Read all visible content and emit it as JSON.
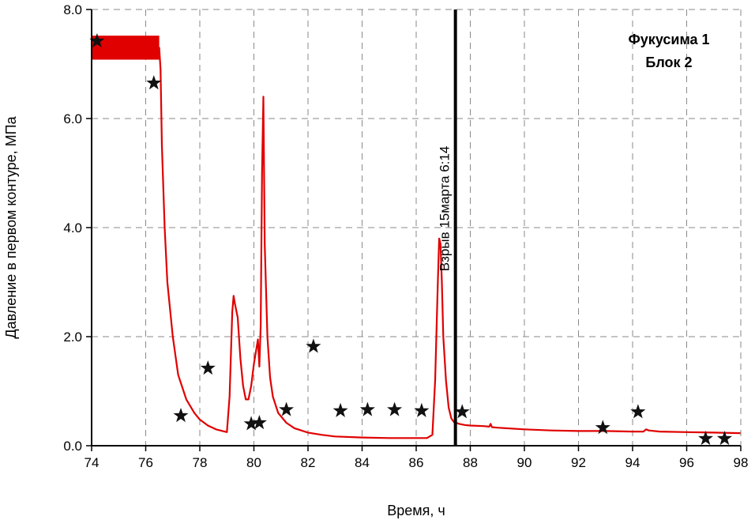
{
  "chart_data": {
    "type": "line",
    "xlabel": "Время, ч",
    "ylabel": "Давление в первом контуре, МПа",
    "xlim": [
      74,
      98
    ],
    "ylim": [
      0,
      8
    ],
    "x_ticks": [
      "74",
      "76",
      "78",
      "80",
      "82",
      "84",
      "86",
      "88",
      "90",
      "92",
      "94",
      "96",
      "98"
    ],
    "y_ticks": [
      "0.0",
      "2.0",
      "4.0",
      "6.0",
      "8.0"
    ],
    "grid": true,
    "colors": {
      "line": "#e00000",
      "star": "#111111",
      "event": "#000000"
    },
    "annotation": {
      "line1": "Фукусима 1",
      "line2": "Блок 2"
    },
    "event": {
      "x": 87.45,
      "label": "Взрыв 15марта 6:14"
    },
    "series": [
      {
        "type": "line",
        "x": [
          74.0,
          76.5,
          76.55,
          76.6,
          76.7,
          76.8,
          77.0,
          77.2,
          77.5,
          77.8,
          78.0,
          78.3,
          78.6,
          79.0,
          79.1,
          79.2,
          79.25,
          79.3,
          79.4,
          79.5,
          79.6,
          79.7,
          79.8,
          79.9,
          80.0,
          80.1,
          80.15,
          80.2,
          80.25,
          80.3,
          80.35,
          80.4,
          80.5,
          80.6,
          80.7,
          80.9,
          81.2,
          81.5,
          82.0,
          82.5,
          83.0,
          84.0,
          85.0,
          86.0,
          86.4,
          86.6,
          86.7,
          86.8,
          86.85,
          86.9,
          86.95,
          87.0,
          87.1,
          87.2,
          87.3,
          87.4,
          87.6,
          87.8,
          88.0,
          88.5,
          88.7,
          88.75,
          88.8,
          89.0,
          90.0,
          91.0,
          92.0,
          93.0,
          94.0,
          94.4,
          94.5,
          94.6,
          95.0,
          96.0,
          97.0,
          98.0
        ],
        "y": [
          7.3,
          7.3,
          6.9,
          5.5,
          4.0,
          3.0,
          2.0,
          1.3,
          0.85,
          0.6,
          0.48,
          0.37,
          0.3,
          0.25,
          0.9,
          2.45,
          2.75,
          2.6,
          2.35,
          1.6,
          1.1,
          0.85,
          0.85,
          1.1,
          1.5,
          1.8,
          1.95,
          1.45,
          2.2,
          5.0,
          6.4,
          3.7,
          2.0,
          1.25,
          0.9,
          0.6,
          0.42,
          0.32,
          0.24,
          0.2,
          0.17,
          0.15,
          0.14,
          0.14,
          0.14,
          0.2,
          1.2,
          3.0,
          3.8,
          3.7,
          3.0,
          2.0,
          1.2,
          0.7,
          0.5,
          0.43,
          0.4,
          0.38,
          0.37,
          0.36,
          0.35,
          0.4,
          0.34,
          0.33,
          0.3,
          0.28,
          0.27,
          0.27,
          0.26,
          0.26,
          0.3,
          0.28,
          0.26,
          0.25,
          0.24,
          0.23
        ]
      },
      {
        "type": "scatter",
        "marker": "star",
        "x": [
          74.2,
          76.3,
          77.3,
          78.3,
          79.9,
          80.2,
          81.2,
          82.2,
          83.2,
          84.2,
          85.2,
          86.2,
          87.7,
          92.9,
          94.2,
          96.7,
          97.4
        ],
        "y": [
          7.42,
          6.65,
          0.55,
          1.42,
          0.4,
          0.42,
          0.66,
          1.82,
          0.64,
          0.66,
          0.66,
          0.64,
          0.62,
          0.33,
          0.62,
          0.13,
          0.13
        ]
      }
    ]
  }
}
